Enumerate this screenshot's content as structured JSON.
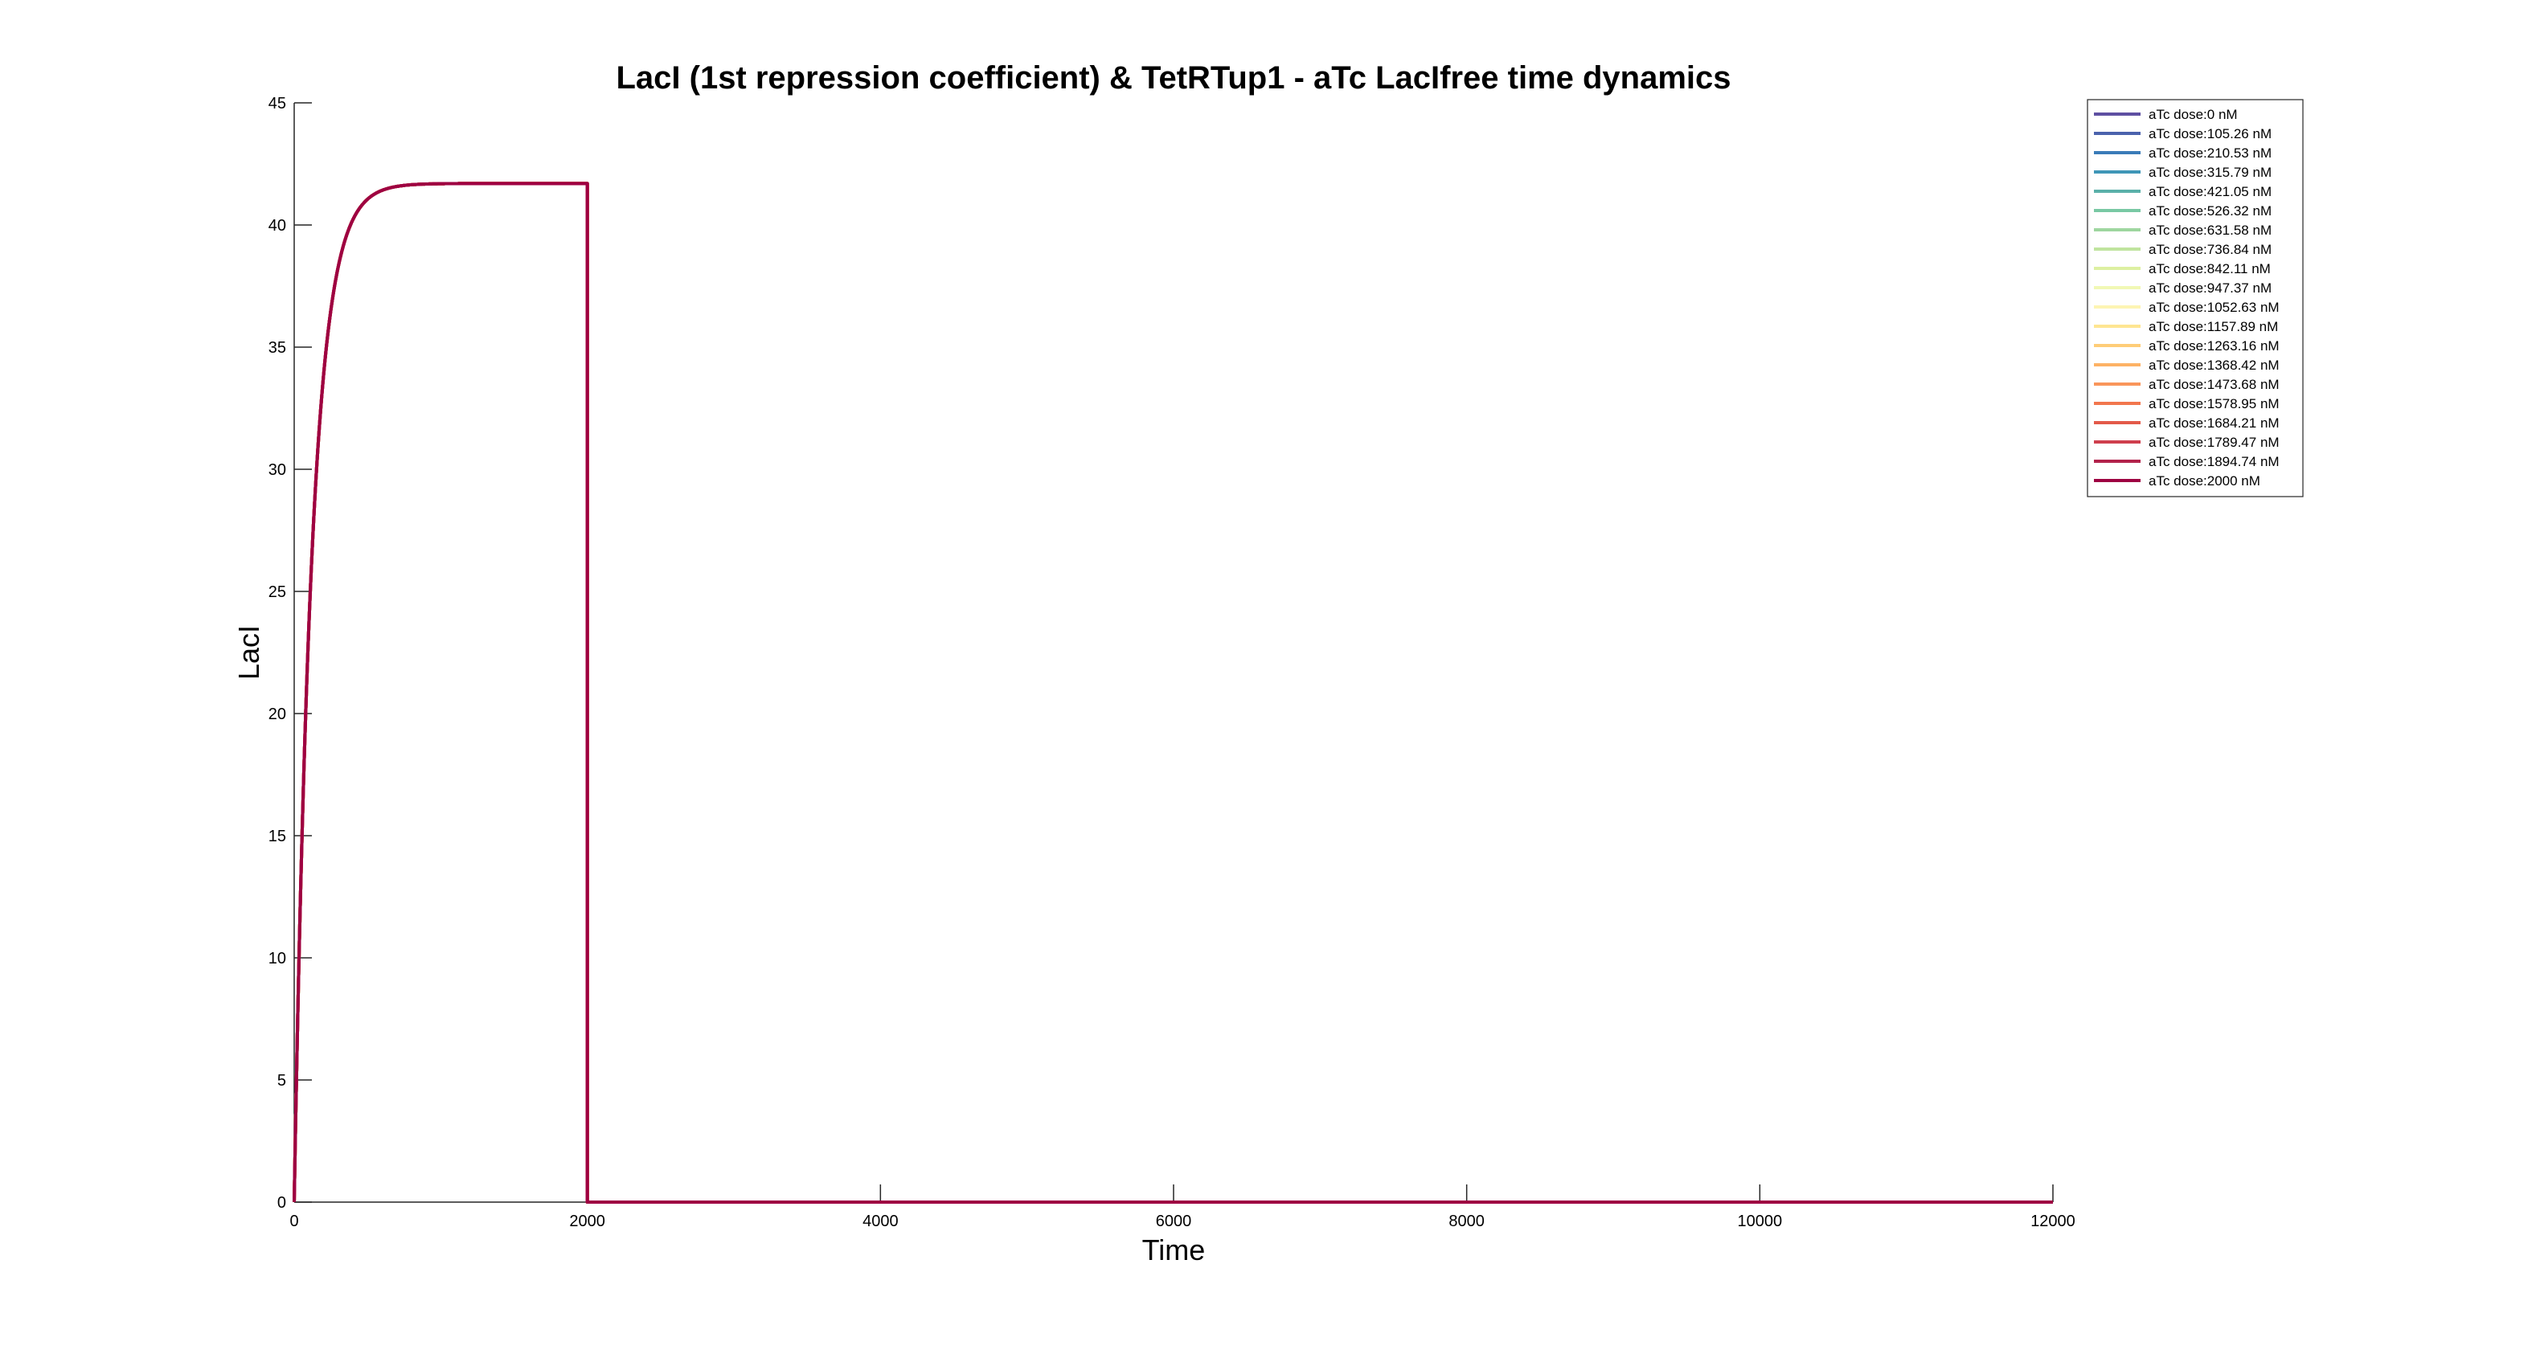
{
  "chart_data": {
    "type": "line",
    "title": "LacI (1st repression coefficient) & TetRTup1 - aTc LacIfree time dynamics",
    "xlabel": "Time",
    "ylabel": "LacI",
    "xlim": [
      0,
      12000
    ],
    "ylim": [
      0,
      45
    ],
    "xticks": [
      0,
      2000,
      4000,
      6000,
      8000,
      10000,
      12000
    ],
    "yticks": [
      0,
      5,
      10,
      15,
      20,
      25,
      30,
      35,
      40,
      45
    ],
    "grid": false,
    "legend_position": "top-right",
    "curve_shape": {
      "steady_state": 41.7,
      "time_constant": 120,
      "drop_time": 2000,
      "end_time": 12000,
      "note_visible": false
    },
    "series": [
      {
        "name": "aTc dose:0 nM",
        "color": "#5e4fa2"
      },
      {
        "name": "aTc dose:105.26 nM",
        "color": "#4b62ad"
      },
      {
        "name": "aTc dose:210.53 nM",
        "color": "#3a7bb8"
      },
      {
        "name": "aTc dose:315.79 nM",
        "color": "#3f96b7"
      },
      {
        "name": "aTc dose:421.05 nM",
        "color": "#5ab0a9"
      },
      {
        "name": "aTc dose:526.32 nM",
        "color": "#79c8a4"
      },
      {
        "name": "aTc dose:631.58 nM",
        "color": "#9ed69f"
      },
      {
        "name": "aTc dose:736.84 nM",
        "color": "#c0e49f"
      },
      {
        "name": "aTc dose:842.11 nM",
        "color": "#ddf0a2"
      },
      {
        "name": "aTc dose:947.37 nM",
        "color": "#f1f8b5"
      },
      {
        "name": "aTc dose:1052.63 nM",
        "color": "#fdf5b3"
      },
      {
        "name": "aTc dose:1157.89 nM",
        "color": "#fee591"
      },
      {
        "name": "aTc dose:1263.16 nM",
        "color": "#fecd78"
      },
      {
        "name": "aTc dose:1368.42 nM",
        "color": "#fdb265"
      },
      {
        "name": "aTc dose:1473.68 nM",
        "color": "#f9955a"
      },
      {
        "name": "aTc dose:1578.95 nM",
        "color": "#f2764d"
      },
      {
        "name": "aTc dose:1684.21 nM",
        "color": "#e35a49"
      },
      {
        "name": "aTc dose:1789.47 nM",
        "color": "#cf3f4d"
      },
      {
        "name": "aTc dose:1894.74 nM",
        "color": "#b2224b"
      },
      {
        "name": "aTc dose:2000 nM",
        "color": "#9e0142"
      }
    ]
  }
}
